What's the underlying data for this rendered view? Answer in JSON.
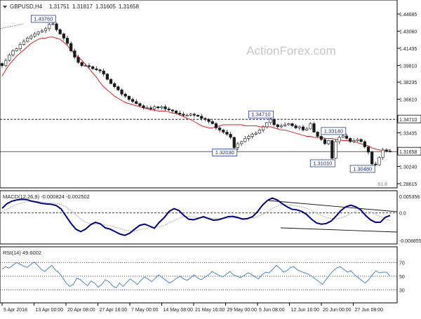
{
  "header": {
    "symbol": "GBPUSD,H4",
    "open": "1.31751",
    "high": "1.31817",
    "low": "1.31605",
    "close": "1.31658"
  },
  "watermark": "ActionForex.com",
  "colors": {
    "price": "#1a1a1a",
    "ma": "#e02020",
    "macd": "#00008b",
    "signal": "#b0b0b0",
    "rsi": "#4a86c8",
    "label_border": "#1f3fa0",
    "grid": "#000000"
  },
  "chart_data": [
    {
      "type": "candlestick",
      "title": "GBPUSD,H4",
      "price_axis": [
        "1.44685",
        "1.43060",
        "1.41435",
        "1.39810",
        "1.38235",
        "1.36610",
        "1.34710",
        "1.33435",
        "1.31658",
        "1.30240",
        "1.28615"
      ],
      "ylim": [
        1.28615,
        1.44685
      ],
      "current_price": "1.31658",
      "reference_levels": [
        {
          "value": 1.3471,
          "label": "1.34710",
          "style": "dashed"
        },
        {
          "value": 1.31658,
          "label": "1.31658",
          "style": "solid"
        }
      ],
      "fib_label": "61.8",
      "annotations": [
        {
          "label": "1.43760",
          "value": 1.4376,
          "kind": "high"
        },
        {
          "label": "1.34710",
          "value": 1.3471,
          "kind": "high"
        },
        {
          "label": "1.33140",
          "value": 1.3314,
          "kind": "high"
        },
        {
          "label": "1.32030",
          "value": 1.3203,
          "kind": "low"
        },
        {
          "label": "1.31010",
          "value": 1.3101,
          "kind": "low"
        },
        {
          "label": "1.30480",
          "value": 1.3048,
          "kind": "low"
        }
      ],
      "series": [
        {
          "values": [
            1.398,
            1.403,
            1.408,
            1.412,
            1.414,
            1.418,
            1.421,
            1.424,
            1.426,
            1.428,
            1.43,
            1.431,
            1.433,
            1.437,
            1.4376,
            1.432,
            1.428,
            1.424,
            1.419,
            1.412,
            1.406,
            1.401,
            1.398,
            1.398,
            1.397,
            1.395,
            1.394,
            1.393,
            1.39,
            1.385,
            1.381,
            1.378,
            1.375,
            1.371,
            1.369,
            1.366,
            1.364,
            1.362,
            1.36,
            1.358,
            1.358,
            1.357,
            1.359,
            1.358,
            1.359,
            1.357,
            1.356,
            1.355,
            1.353,
            1.352,
            1.351,
            1.351,
            1.352,
            1.351,
            1.35,
            1.348,
            1.347,
            1.345,
            1.343,
            1.339,
            1.337,
            1.335,
            1.333,
            1.33,
            1.3203,
            1.324,
            1.326,
            1.329,
            1.331,
            1.333,
            1.334,
            1.337,
            1.34,
            1.344,
            1.3471,
            1.342,
            1.34,
            1.341,
            1.342,
            1.343,
            1.341,
            1.339,
            1.34,
            1.337,
            1.338,
            1.343,
            1.335,
            1.331,
            1.328,
            1.324,
            1.327,
            1.3101,
            1.326,
            1.33,
            1.3314,
            1.329,
            1.326,
            1.327,
            1.328,
            1.326,
            1.321,
            1.316,
            1.3048,
            1.304,
            1.311,
            1.318,
            1.317,
            1.3166
          ]
        },
        {
          "values": [
            1.388,
            1.394,
            1.399,
            1.403,
            1.407,
            1.41,
            1.413,
            1.416,
            1.419,
            1.421,
            1.423,
            1.424,
            1.424,
            1.425,
            1.425,
            1.424,
            1.423,
            1.42,
            1.417,
            1.413,
            1.409,
            1.406,
            1.403,
            1.399,
            1.395,
            1.391,
            1.387,
            1.382,
            1.378,
            1.375,
            1.372,
            1.369,
            1.367,
            1.365,
            1.363,
            1.362,
            1.361,
            1.36,
            1.359,
            1.358,
            1.357,
            1.356,
            1.356,
            1.355,
            1.355,
            1.355,
            1.354,
            1.353,
            1.353,
            1.351,
            1.35,
            1.348,
            1.347,
            1.345,
            1.343,
            1.341,
            1.34,
            1.339,
            1.339,
            1.34,
            1.341,
            1.342,
            1.342,
            1.342,
            1.342,
            1.342,
            1.342,
            1.341,
            1.341,
            1.341,
            1.341,
            1.34,
            1.34,
            1.34,
            1.34,
            1.339,
            1.338,
            1.337,
            1.337,
            1.336,
            1.335,
            1.334,
            1.333,
            1.332,
            1.331,
            1.331,
            1.33,
            1.33,
            1.33,
            1.329,
            1.329,
            1.329,
            1.328,
            1.328,
            1.327,
            1.327,
            1.327,
            1.326,
            1.325,
            1.324,
            1.323,
            1.322,
            1.32,
            1.319,
            1.318,
            1.318,
            1.318,
            1.318
          ]
        }
      ]
    },
    {
      "type": "line",
      "title": "MACD(12,26,9) -0.000824 -0.002502",
      "y_ticks": [
        "0.005358",
        "0.0",
        "-0.008855"
      ],
      "ylim": [
        -0.008855,
        0.005358
      ],
      "series": [
        {
          "values": [
            0.0015,
            0.003,
            0.0038,
            0.0042,
            0.0044,
            0.0043,
            0.0038,
            0.0035,
            0.0031,
            0.0029,
            0.0028,
            0.0024,
            0.0013,
            -0.001,
            -0.0033,
            -0.0052,
            -0.006,
            -0.0052,
            -0.0038,
            -0.003,
            -0.0035,
            -0.0048,
            -0.0052,
            -0.006,
            -0.0068,
            -0.0072,
            -0.0065,
            -0.0052,
            -0.004,
            -0.0036,
            -0.0042,
            -0.0049,
            -0.003,
            -0.0015,
            0.0005,
            0.0014,
            0.0008,
            -0.0008,
            -0.002,
            -0.0022,
            -0.0017,
            -0.0012,
            -0.0018,
            -0.0023,
            -0.0022,
            -0.0017,
            -0.0012,
            -0.0011,
            -0.0015,
            -0.002,
            -0.0018,
            -0.0012,
            0.0004,
            0.0025,
            0.004,
            0.0048,
            0.0042,
            0.003,
            0.002,
            0.0012,
            0.001,
            0.0005,
            -0.0005,
            -0.002,
            -0.0032,
            -0.0036,
            -0.0034,
            -0.0026,
            -0.001,
            0.0008,
            0.002,
            0.0025,
            0.002,
            0.001,
            -0.0008,
            -0.0022,
            -0.003,
            -0.003,
            -0.0014,
            -0.0008
          ]
        },
        {
          "values": [
            0.0005,
            0.0012,
            0.002,
            0.0027,
            0.0032,
            0.0036,
            0.0037,
            0.0037,
            0.0036,
            0.0034,
            0.0032,
            0.0031,
            0.0027,
            0.0019,
            0.0008,
            -0.0005,
            -0.002,
            -0.003,
            -0.0035,
            -0.0036,
            -0.0036,
            -0.0038,
            -0.0041,
            -0.0045,
            -0.005,
            -0.0055,
            -0.0058,
            -0.0058,
            -0.0054,
            -0.0051,
            -0.0048,
            -0.0047,
            -0.0045,
            -0.004,
            -0.0033,
            -0.0024,
            -0.0016,
            -0.0012,
            -0.0011,
            -0.0013,
            -0.0015,
            -0.0015,
            -0.0016,
            -0.0017,
            -0.0018,
            -0.0018,
            -0.0017,
            -0.0016,
            -0.0016,
            -0.0017,
            -0.0017,
            -0.0016,
            -0.0012,
            -0.0005,
            0.0004,
            0.0014,
            0.0022,
            0.0027,
            0.0027,
            0.0025,
            0.0022,
            0.0019,
            0.0015,
            0.0008,
            0.0,
            -0.0008,
            -0.0014,
            -0.0018,
            -0.0019,
            -0.0016,
            -0.001,
            -0.0002,
            0.0006,
            0.001,
            0.001,
            0.0004,
            -0.0004,
            -0.0012,
            -0.0018,
            -0.0025
          ]
        }
      ]
    },
    {
      "type": "line",
      "title": "RSI(14) 49.6002",
      "y_ticks": [
        "70",
        "50",
        "30"
      ],
      "ylim": [
        15,
        85
      ],
      "series": [
        {
          "values": [
            60,
            64,
            62,
            66,
            70,
            68,
            65,
            63,
            67,
            71,
            66,
            60,
            57,
            62,
            66,
            59,
            55,
            48,
            40,
            35,
            38,
            47,
            45,
            40,
            36,
            43,
            40,
            34,
            38,
            45,
            42,
            36,
            33,
            40,
            35,
            41,
            46,
            42,
            38,
            44,
            49,
            46,
            42,
            47,
            52,
            48,
            44,
            40,
            43,
            47,
            50,
            46,
            44,
            48,
            52,
            47,
            45,
            49,
            52,
            57,
            54,
            51,
            49,
            53,
            57,
            52,
            50,
            48,
            51,
            55,
            53,
            49,
            46,
            52,
            56,
            55,
            60,
            66,
            62,
            56,
            58,
            63,
            64,
            59,
            57,
            55,
            53,
            50,
            46,
            42,
            38,
            45,
            52,
            58,
            62,
            64,
            60,
            56,
            58,
            52,
            48,
            44,
            40,
            45,
            52,
            58,
            55,
            56,
            56,
            49.6
          ]
        }
      ]
    }
  ],
  "time_axis": [
    "5 Apr 2018",
    "13 Apr 00:00",
    "20 Apr 08:00",
    "27 Apr 16:00",
    "7 May 00:00",
    "14 May 08:00",
    "21 May 16:00",
    "29 May 00:00",
    "5 Jun 08:00",
    "12 Jun 16:00",
    "20 Jun 00:00",
    "27 Jun 08:00"
  ]
}
